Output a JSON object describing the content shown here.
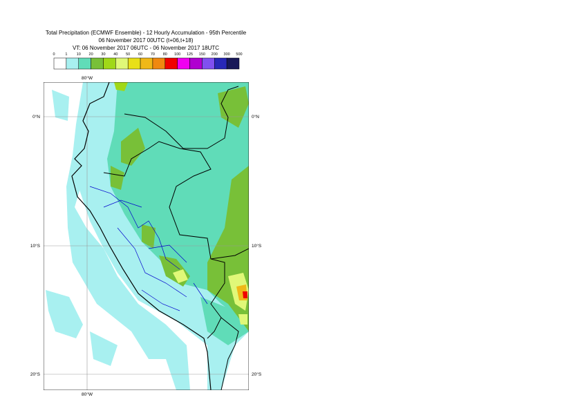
{
  "header": {
    "title": "Total Precipitation (ECMWF Ensemble) - 12 Hourly Accumulation - 95th Percentile",
    "base_time": "06 November 2017 00UTC (t+06,t+18)",
    "valid_time": "VT: 06 November 2017 06UTC - 06 November 2017 18UTC"
  },
  "legend": {
    "labels": [
      "0",
      "1",
      "10",
      "20",
      "30",
      "40",
      "50",
      "60",
      "70",
      "80",
      "100",
      "125",
      "150",
      "200",
      "300",
      "500"
    ],
    "colors": [
      "#ffffff",
      "#a8f0f0",
      "#60dcb8",
      "#78c038",
      "#a0d818",
      "#e0f878",
      "#e8e018",
      "#f0b818",
      "#f08810",
      "#f00000",
      "#f000f0",
      "#b000d0",
      "#8050f0",
      "#2828b8",
      "#181858"
    ]
  },
  "map": {
    "lat_labels": [
      "0°N",
      "10°S",
      "20°S"
    ],
    "lon_labels": [
      "80°W"
    ]
  }
}
